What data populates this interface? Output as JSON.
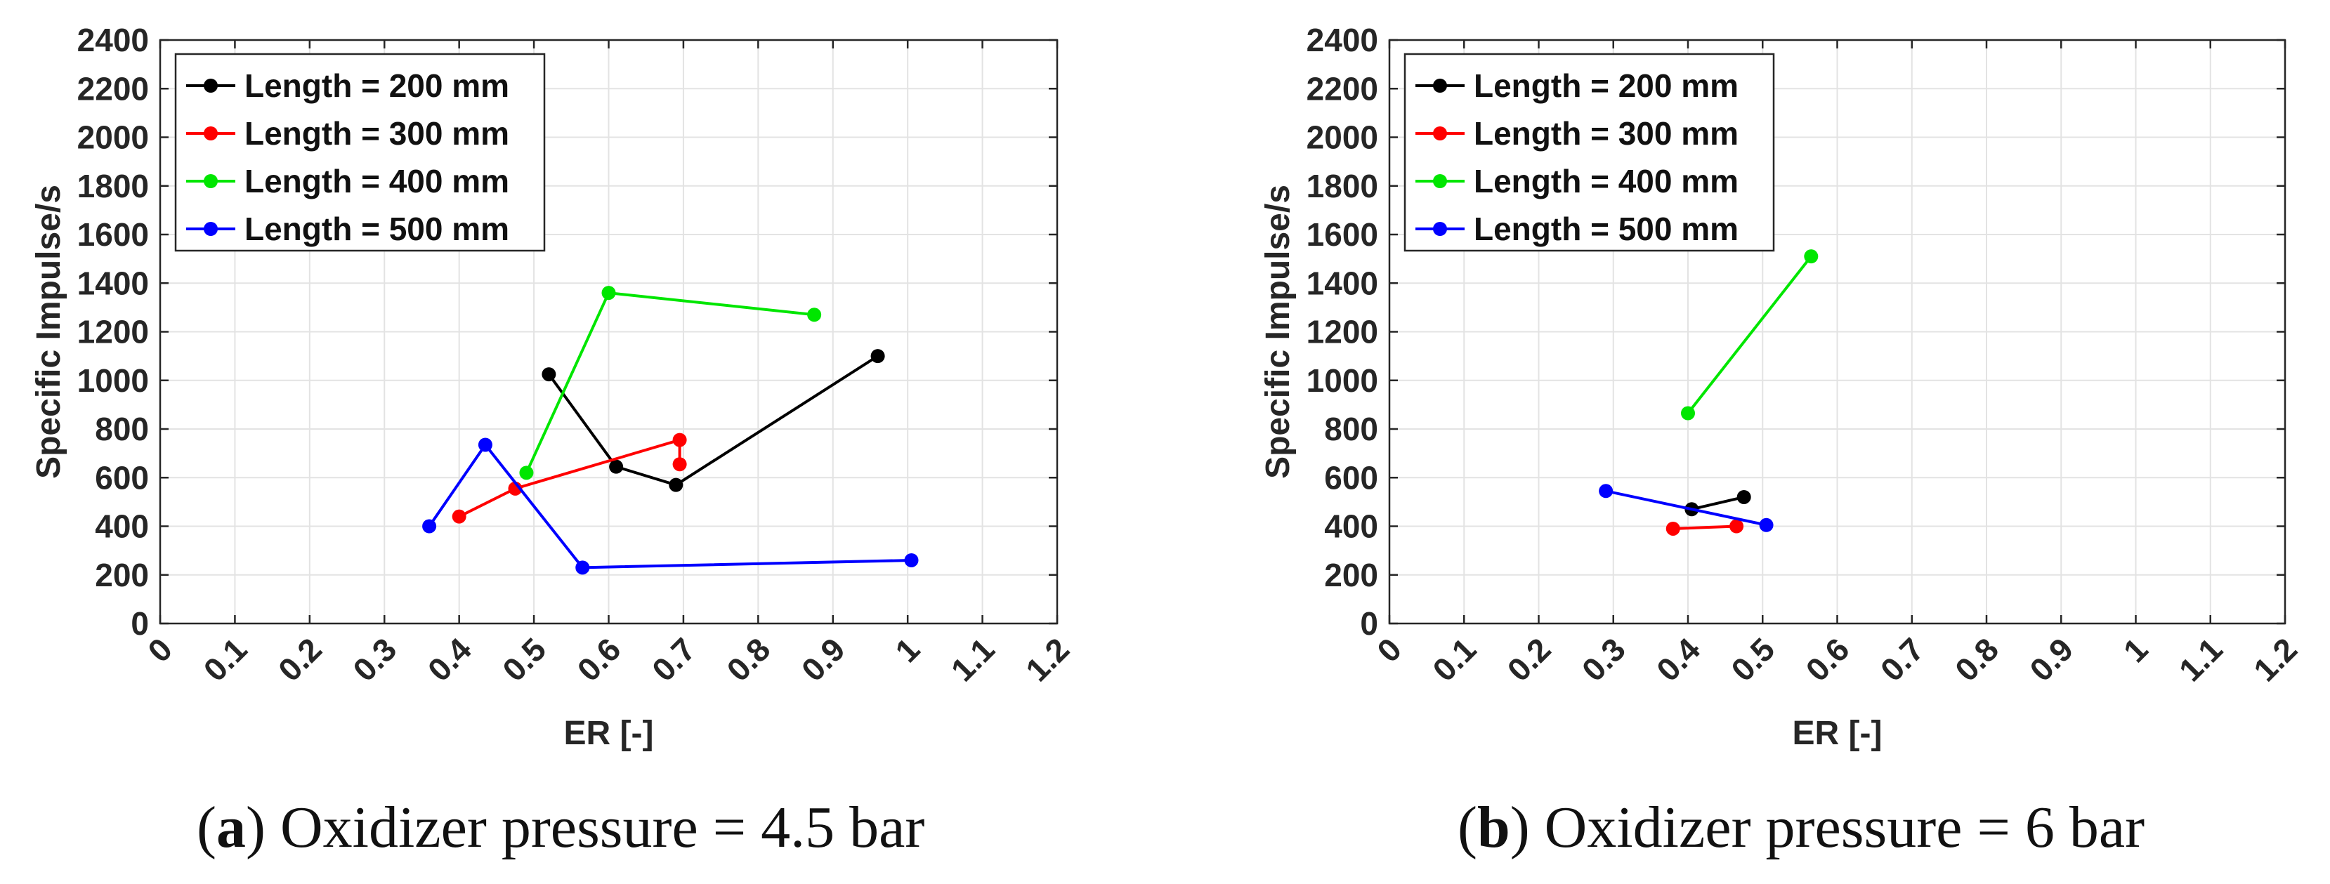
{
  "chart_data": [
    {
      "type": "line",
      "xlabel": "ER [-]",
      "ylabel": "Specific Impulse/s",
      "xlim": [
        0,
        1.2
      ],
      "ylim": [
        0,
        2400
      ],
      "xticks": [
        "0",
        "0.1",
        "0.2",
        "0.3",
        "0.4",
        "0.5",
        "0.6",
        "0.7",
        "0.8",
        "0.9",
        "1",
        "1.1",
        "1.2"
      ],
      "yticks": [
        "0",
        "200",
        "400",
        "600",
        "800",
        "1000",
        "1200",
        "1400",
        "1600",
        "1800",
        "2000",
        "2200",
        "2400"
      ],
      "grid": true,
      "legend_position": "top-left",
      "series": [
        {
          "name": "Length = 200 mm",
          "color": "#000000",
          "x": [
            0.52,
            0.61,
            0.69,
            0.96
          ],
          "y": [
            1025,
            645,
            570,
            1100
          ]
        },
        {
          "name": "Length = 300 mm",
          "color": "#ff0000",
          "x": [
            0.4,
            0.475,
            0.695,
            0.695
          ],
          "y": [
            440,
            555,
            755,
            655
          ]
        },
        {
          "name": "Length = 400 mm",
          "color": "#00e600",
          "x": [
            0.49,
            0.6,
            0.875
          ],
          "y": [
            620,
            1360,
            1270
          ]
        },
        {
          "name": "Length = 500 mm",
          "color": "#0000ff",
          "x": [
            0.36,
            0.435,
            0.565,
            1.005
          ],
          "y": [
            400,
            735,
            230,
            260
          ]
        }
      ],
      "caption": {
        "label": "a",
        "text": ") Oxidizer pressure = 4.5 bar"
      }
    },
    {
      "type": "line",
      "xlabel": "ER [-]",
      "ylabel": "Specific Impulse/s",
      "xlim": [
        0,
        1.2
      ],
      "ylim": [
        0,
        2400
      ],
      "xticks": [
        "0",
        "0.1",
        "0.2",
        "0.3",
        "0.4",
        "0.5",
        "0.6",
        "0.7",
        "0.8",
        "0.9",
        "1",
        "1.1",
        "1.2"
      ],
      "yticks": [
        "0",
        "200",
        "400",
        "600",
        "800",
        "1000",
        "1200",
        "1400",
        "1600",
        "1800",
        "2000",
        "2200",
        "2400"
      ],
      "grid": true,
      "legend_position": "top-left",
      "series": [
        {
          "name": "Length = 200 mm",
          "color": "#000000",
          "x": [
            0.405,
            0.475
          ],
          "y": [
            470,
            520
          ]
        },
        {
          "name": "Length = 300 mm",
          "color": "#ff0000",
          "x": [
            0.38,
            0.465
          ],
          "y": [
            390,
            400
          ]
        },
        {
          "name": "Length = 400 mm",
          "color": "#00e600",
          "x": [
            0.4,
            0.565
          ],
          "y": [
            865,
            1510
          ]
        },
        {
          "name": "Length = 500 mm",
          "color": "#0000ff",
          "x": [
            0.29,
            0.505
          ],
          "y": [
            545,
            405
          ]
        }
      ],
      "caption": {
        "label": "b",
        "text": ") Oxidizer pressure = 6 bar"
      }
    }
  ]
}
